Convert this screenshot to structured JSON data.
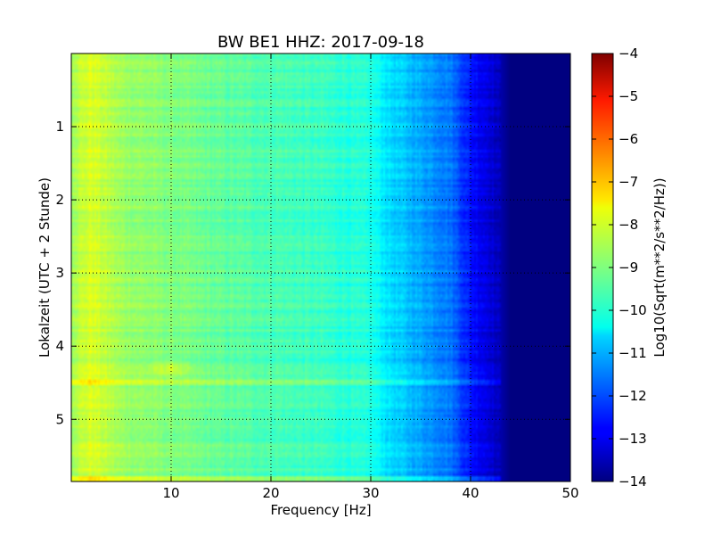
{
  "chart_data": {
    "type": "heatmap",
    "title": "BW BE1 HHZ: 2017-09-18",
    "xlabel": "Frequency [Hz]",
    "ylabel": "Lokalzeit (UTC + 2 Stunde)",
    "xlim": [
      0,
      50
    ],
    "ylim": [
      5.85,
      0
    ],
    "xticks": [
      10,
      20,
      30,
      40,
      50
    ],
    "yticks": [
      1,
      2,
      3,
      4,
      5
    ],
    "grid": true,
    "colormap": "jet",
    "colorbar": {
      "label": "Log10(Sqrt(m**2/s**2/Hz))",
      "range": [
        -14,
        -4
      ],
      "ticks": [
        -4,
        -5,
        -6,
        -7,
        -8,
        -9,
        -10,
        -11,
        -12,
        -13,
        -14
      ]
    },
    "profile": {
      "frequency_hz": [
        0,
        2,
        5,
        10,
        15,
        20,
        25,
        30,
        32,
        35,
        38,
        40,
        42,
        44,
        45,
        50
      ],
      "log_amplitude": [
        -8.6,
        -8.1,
        -8.7,
        -9.0,
        -9.3,
        -9.5,
        -9.7,
        -10.0,
        -10.6,
        -11.1,
        -11.6,
        -12.6,
        -13.1,
        -14.0,
        -14.0,
        -14.0
      ]
    },
    "features": [
      {
        "type": "band",
        "time": 4.5,
        "freq_range": [
          0,
          44
        ],
        "offset": 0.8
      },
      {
        "type": "band",
        "time": 5.8,
        "freq_range": [
          0,
          44
        ],
        "offset": 0.7
      },
      {
        "type": "blob",
        "time": 4.3,
        "freq": 10,
        "offset": 0.7
      }
    ]
  }
}
